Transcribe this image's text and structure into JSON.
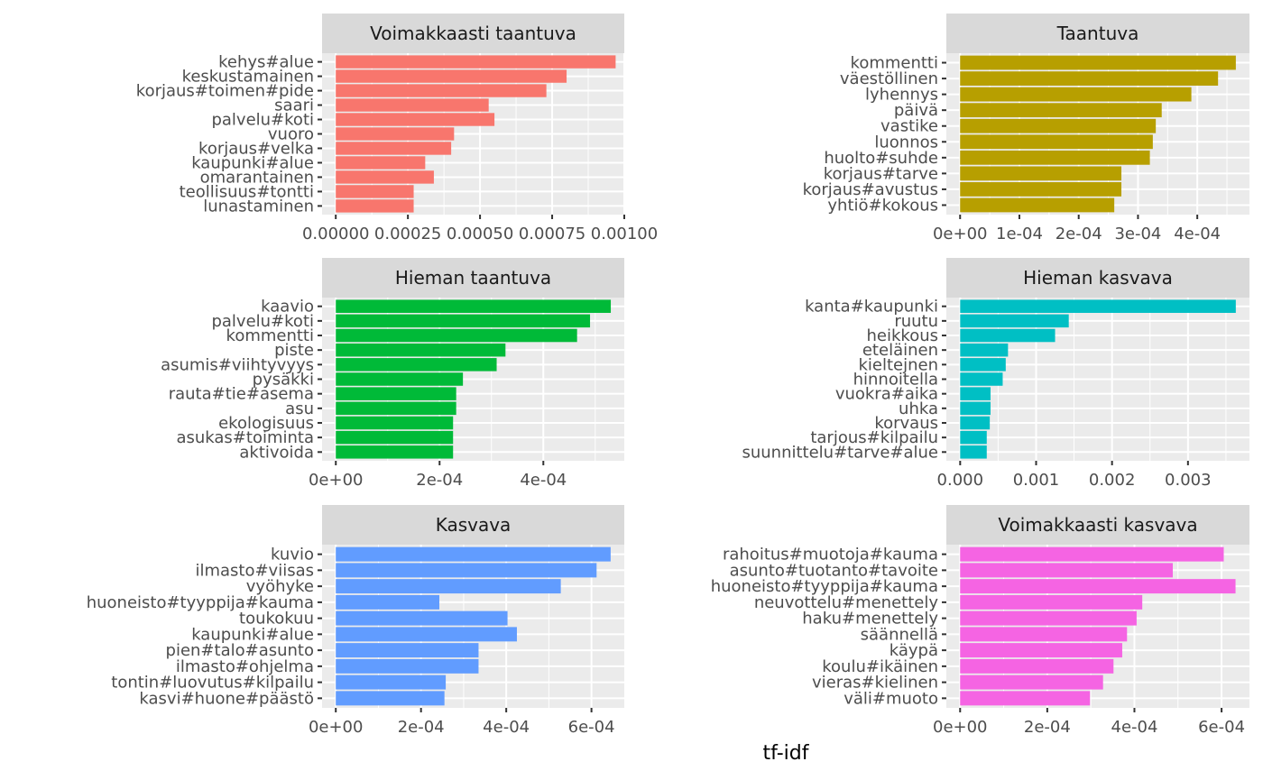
{
  "chart_data": [
    {
      "type": "bar",
      "orientation": "horizontal",
      "title": "Voimakkaasti taantuva",
      "color": "#F8766D",
      "categories": [
        "kehys#alue",
        "keskustamainen",
        "korjaus#toimen#pide",
        "saari",
        "palvelu#koti",
        "vuoro",
        "korjaus#velka",
        "kaupunki#alue",
        "omarantainen",
        "teollisuus#tontti",
        "lunastaminen"
      ],
      "values": [
        0.00097,
        0.0008,
        0.00073,
        0.00053,
        0.00055,
        0.00041,
        0.0004,
        0.00031,
        0.00034,
        0.00027,
        0.00027
      ],
      "xlim": [
        -4.75e-05,
        0.001
      ],
      "xticks": [
        0,
        0.00025,
        0.0005,
        0.00075,
        0.001
      ],
      "xtick_labels": [
        "0.00000",
        "0.00025",
        "0.00050",
        "0.00075",
        "0.00100"
      ]
    },
    {
      "type": "bar",
      "orientation": "horizontal",
      "title": "Taantuva",
      "color": "#B79F00",
      "categories": [
        "kommentti",
        "väestöllinen",
        "lyhennys",
        "päivä",
        "vastike",
        "luonnos",
        "huolto#suhde",
        "korjaus#tarve",
        "korjaus#avustus",
        "yhtiö#kokous"
      ],
      "values": [
        0.000465,
        0.000435,
        0.00039,
        0.00034,
        0.00033,
        0.000325,
        0.00032,
        0.000272,
        0.000272,
        0.00026
      ],
      "xlim": [
        -2.32e-05,
        0.000488
      ],
      "xticks": [
        0,
        0.0001,
        0.0002,
        0.0003,
        0.0004
      ],
      "xtick_labels": [
        "0e+00",
        "1e-04",
        "2e-04",
        "3e-04",
        "4e-04"
      ]
    },
    {
      "type": "bar",
      "orientation": "horizontal",
      "title": "Hieman taantuva",
      "color": "#00BA38",
      "categories": [
        "kaavio",
        "palvelu#koti",
        "kommentti",
        "piste",
        "asumis#viihtyvyys",
        "pysäkki",
        "rauta#tie#asema",
        "asu",
        "ekologisuus",
        "asukas#toiminta",
        "aktivoida"
      ],
      "values": [
        0.00053,
        0.00049,
        0.000465,
        0.000327,
        0.00031,
        0.000245,
        0.000232,
        0.000232,
        0.000226,
        0.000226,
        0.000226
      ],
      "xlim": [
        -2.65e-05,
        0.000556
      ],
      "xticks": [
        0,
        0.0002,
        0.0004
      ],
      "xtick_labels": [
        "0e+00",
        "2e-04",
        "4e-04"
      ]
    },
    {
      "type": "bar",
      "orientation": "horizontal",
      "title": "Hieman kasvava",
      "color": "#00BFC4",
      "categories": [
        "kanta#kaupunki",
        "ruutu",
        "heikkous",
        "eteläinen",
        "kieltejnen",
        "hinnoitella",
        "vuokra#aika",
        "uhka",
        "korvaus",
        "tarjous#kilpailu",
        "suunnittelu#tarve#alue"
      ],
      "values": [
        0.00363,
        0.00143,
        0.00125,
        0.00063,
        0.0006,
        0.00056,
        0.0004,
        0.0004,
        0.00039,
        0.00035,
        0.00035
      ],
      "xlim": [
        -0.000182,
        0.00381
      ],
      "xticks": [
        0,
        0.001,
        0.002,
        0.003
      ],
      "xtick_labels": [
        "0.000",
        "0.001",
        "0.002",
        "0.003"
      ]
    },
    {
      "type": "bar",
      "orientation": "horizontal",
      "title": "Kasvava",
      "color": "#619CFF",
      "categories": [
        "kuvio",
        "ilmasto#viisas",
        "vyöhyke",
        "huoneisto#tyyppija#kauma",
        "toukokuu",
        "kaupunki#alue",
        "pien#talo#asunto",
        "ilmasto#ohjelma",
        "tontin#luovutus#kilpailu",
        "kasvi#huone#päästö"
      ],
      "values": [
        0.000645,
        0.000612,
        0.000528,
        0.000243,
        0.000403,
        0.000425,
        0.000335,
        0.000335,
        0.000258,
        0.000255
      ],
      "xlim": [
        -3.22e-05,
        0.000677
      ],
      "xticks": [
        0,
        0.0002,
        0.0004,
        0.0006
      ],
      "xtick_labels": [
        "0e+00",
        "2e-04",
        "4e-04",
        "6e-04"
      ]
    },
    {
      "type": "bar",
      "orientation": "horizontal",
      "title": "Voimakkaasti kasvava",
      "color": "#F564E3",
      "categories": [
        "rahoitus#muotoja#kauma",
        "asunto#tuotanto#tavoite",
        "huoneisto#tyyppija#kauma",
        "neuvottelu#menettely",
        "haku#menettely",
        "säännellä",
        "käypä",
        "koulu#ikäinen",
        "vieras#kielinen",
        "väli#muoto"
      ],
      "values": [
        0.000605,
        0.000488,
        0.000632,
        0.000418,
        0.000405,
        0.000383,
        0.000372,
        0.000352,
        0.000328,
        0.000298
      ],
      "xlim": [
        -3.16e-05,
        0.000664
      ],
      "xticks": [
        0,
        0.0002,
        0.0004,
        0.0006
      ],
      "xtick_labels": [
        "0e+00",
        "2e-04",
        "4e-04",
        "6e-04"
      ]
    }
  ],
  "xlabel": "tf-idf"
}
